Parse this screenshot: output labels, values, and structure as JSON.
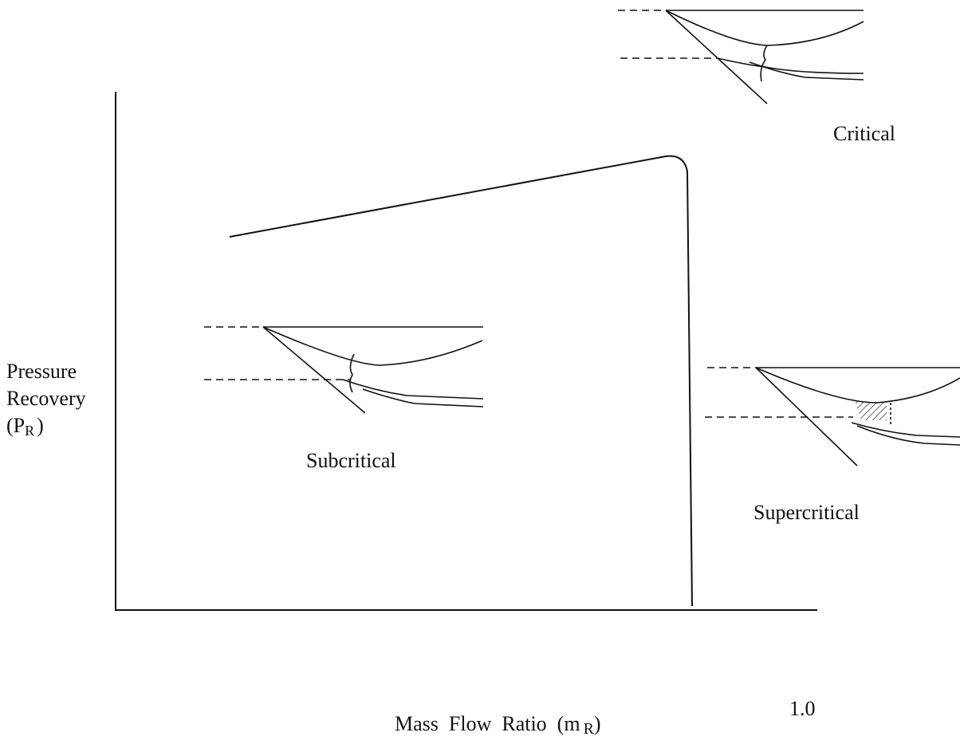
{
  "y_axis": {
    "label_lines": [
      "Pressure",
      "Recovery"
    ],
    "symbol_open": "(P",
    "symbol_subscript": "R",
    "symbol_close": ")"
  },
  "x_axis": {
    "label": "Mass  Flow  Ratio  (m",
    "label_subscript": "R",
    "label_close": ")",
    "end_label": "1.0"
  },
  "regimes": [
    {
      "label": "Critical"
    },
    {
      "label": "Subcritical"
    },
    {
      "label": "Supercritical"
    }
  ]
}
